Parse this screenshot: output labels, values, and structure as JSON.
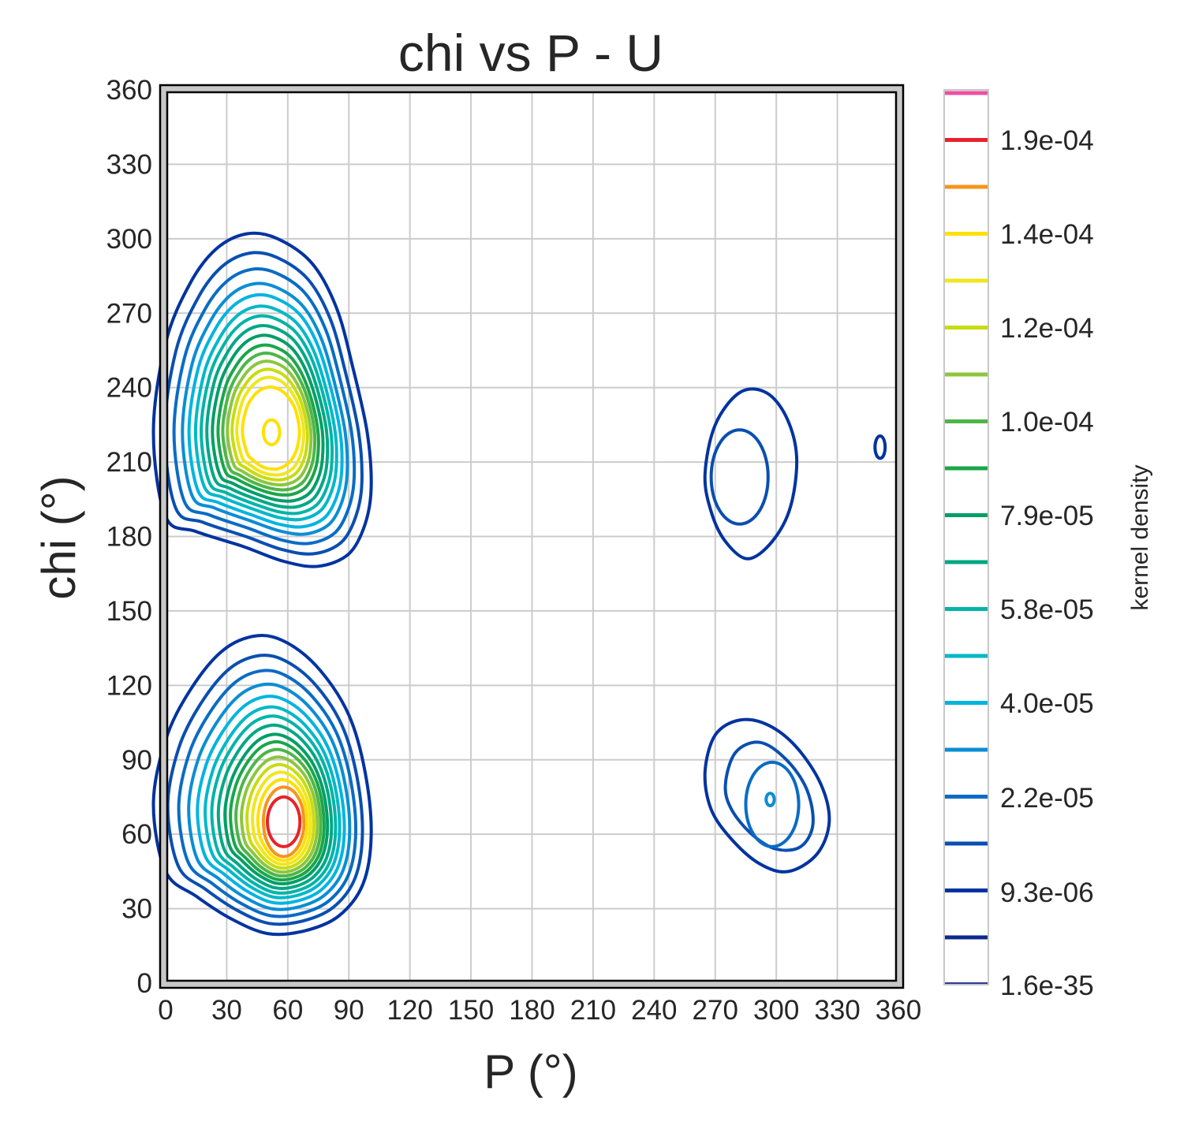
{
  "chart_data": {
    "type": "contour",
    "title": "chi vs P - U",
    "xlabel": "P (°)",
    "ylabel": "chi (°)",
    "xlim": [
      0,
      360
    ],
    "ylim": [
      0,
      360
    ],
    "xticks": [
      0,
      30,
      60,
      90,
      120,
      150,
      180,
      210,
      240,
      270,
      300,
      330,
      360
    ],
    "yticks": [
      0,
      30,
      60,
      90,
      120,
      150,
      180,
      210,
      240,
      270,
      300,
      330,
      360
    ],
    "grid": true,
    "colorbar": {
      "label": "kernel density",
      "tick_labels": [
        "1.6e-35",
        "9.3e-06",
        "2.2e-05",
        "4.0e-05",
        "5.8e-05",
        "7.9e-05",
        "1.0e-04",
        "1.2e-04",
        "1.4e-04",
        "1.9e-04"
      ],
      "level_colors": [
        "#0d2a8c",
        "#0033a0",
        "#0a4fb0",
        "#0a6cc4",
        "#0a8ed4",
        "#00b4e0",
        "#00b8c8",
        "#00b4a8",
        "#00a884",
        "#009e68",
        "#1aa64a",
        "#4db648",
        "#8cc63f",
        "#c8dc10",
        "#f0e61e",
        "#ffe000",
        "#f7941d",
        "#e8222a",
        "#ed4fa0"
      ]
    },
    "peaks": [
      {
        "P": 52,
        "chi": 223,
        "peak_density": 0.00015
      },
      {
        "P": 58,
        "chi": 65,
        "peak_density": 0.00019
      },
      {
        "P": 282,
        "chi": 205,
        "peak_density": 1.5e-05
      },
      {
        "P": 298,
        "chi": 75,
        "peak_density": 2.2e-05
      },
      {
        "P": 351,
        "chi": 216,
        "peak_density": 2e-06
      }
    ]
  }
}
